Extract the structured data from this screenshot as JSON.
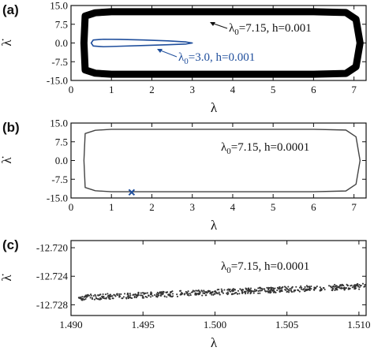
{
  "chart_data": [
    {
      "panel": "(a)",
      "type": "line",
      "xlabel": "λ",
      "ylabel": "λ̇",
      "xlim": [
        0,
        7.3
      ],
      "ylim": [
        -15,
        15
      ],
      "xticks": [
        "0",
        "1",
        "2",
        "3",
        "4",
        "5",
        "6",
        "7"
      ],
      "yticks": [
        "-15.0",
        "-7.5",
        "0.0",
        "7.5",
        "15.0"
      ],
      "series": [
        {
          "name": "λ0=7.15, h=0.001",
          "color": "#000000",
          "style": "thick band",
          "x": [
            0.35,
            0.6,
            1,
            2,
            3,
            4,
            5,
            6,
            6.8,
            7.05,
            7.15,
            7.05,
            6.8,
            6,
            5,
            4,
            3,
            2,
            1,
            0.6,
            0.35,
            0.32,
            0.35
          ],
          "y": [
            10.8,
            12.1,
            12.5,
            12.5,
            12.5,
            12.5,
            12.5,
            12.5,
            12.2,
            9.5,
            0,
            -9.5,
            -12.2,
            -12.5,
            -12.5,
            -12.5,
            -12.5,
            -12.5,
            -12.5,
            -12.1,
            -10.8,
            0,
            10.8
          ]
        },
        {
          "name": "λ0=3.0, h=0.001",
          "color": "#1f4e9c",
          "style": "thin line",
          "x": [
            0.55,
            0.8,
            1.2,
            1.8,
            2.4,
            2.85,
            3.0,
            2.85,
            2.4,
            1.8,
            1.2,
            0.8,
            0.55,
            0.5,
            0.55
          ],
          "y": [
            1.2,
            1.5,
            1.45,
            1.2,
            0.85,
            0.4,
            0,
            -0.4,
            -0.7,
            -1.0,
            -1.3,
            -1.5,
            -1.2,
            0,
            1.2
          ]
        }
      ],
      "annotations": [
        {
          "text": "λ0=7.15, h=0.001",
          "color": "#000000"
        },
        {
          "text": "λ0=3.0, h=0.001",
          "color": "#1f4e9c"
        }
      ]
    },
    {
      "panel": "(b)",
      "type": "line",
      "xlabel": "λ",
      "ylabel": "λ̇",
      "xlim": [
        0,
        7.3
      ],
      "ylim": [
        -15,
        15
      ],
      "xticks": [
        "0",
        "1",
        "2",
        "3",
        "4",
        "5",
        "6",
        "7"
      ],
      "yticks": [
        "-15.0",
        "-7.5",
        "0.0",
        "7.5",
        "15.0"
      ],
      "series": [
        {
          "name": "λ0=7.15, h=0.0001",
          "color": "#444444",
          "x": [
            0.35,
            0.6,
            1,
            2,
            3,
            4,
            5,
            6,
            6.8,
            7.05,
            7.15,
            7.05,
            6.8,
            6,
            5,
            4,
            3,
            2,
            1,
            0.6,
            0.35,
            0.32,
            0.35
          ],
          "y": [
            10.8,
            12.1,
            12.5,
            12.5,
            12.5,
            12.5,
            12.5,
            12.5,
            12.2,
            9.5,
            0,
            -9.5,
            -12.2,
            -12.5,
            -12.5,
            -12.5,
            -12.5,
            -12.5,
            -12.5,
            -12.1,
            -10.8,
            0,
            10.8
          ]
        }
      ],
      "marker": {
        "symbol": "x",
        "x": 1.5,
        "y": -12.72,
        "color": "#1f4e9c"
      },
      "annotations": [
        {
          "text": "λ0=7.15, h=0.0001"
        }
      ]
    },
    {
      "panel": "(c)",
      "type": "scatter",
      "xlabel": "λ",
      "ylabel": "λ̇",
      "xlim": [
        1.49,
        1.5105
      ],
      "ylim": [
        -12.7295,
        -12.719
      ],
      "xticks": [
        "1.490",
        "1.495",
        "1.500",
        "1.505",
        "1.510"
      ],
      "yticks": [
        "-12.720",
        "-12.724",
        "-12.728"
      ],
      "series": [
        {
          "name": "λ0=7.15, h=0.0001",
          "color": "#333333",
          "x_range": [
            1.4905,
            1.5105
          ],
          "y_start": -12.727,
          "y_end": -12.7254,
          "spread": 0.0008,
          "count": 600
        }
      ],
      "annotations": [
        {
          "text": "λ0=7.15, h=0.0001"
        }
      ]
    }
  ],
  "labels": {
    "panel_a": "(a)",
    "panel_b": "(b)",
    "panel_c": "(c)",
    "x_axis": "λ",
    "y_axis": "λ̇",
    "anno_a_black": "λ0=7.15, h=0.001",
    "anno_a_blue": "λ0=3.0, h=0.001",
    "anno_b": "λ0=7.15, h=0.0001",
    "anno_c": "λ0=7.15, h=0.0001"
  }
}
